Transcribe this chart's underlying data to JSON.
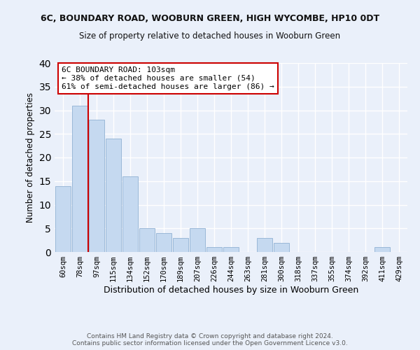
{
  "title": "6C, BOUNDARY ROAD, WOOBURN GREEN, HIGH WYCOMBE, HP10 0DT",
  "subtitle": "Size of property relative to detached houses in Wooburn Green",
  "xlabel": "Distribution of detached houses by size in Wooburn Green",
  "ylabel": "Number of detached properties",
  "categories": [
    "60sqm",
    "78sqm",
    "97sqm",
    "115sqm",
    "134sqm",
    "152sqm",
    "170sqm",
    "189sqm",
    "207sqm",
    "226sqm",
    "244sqm",
    "263sqm",
    "281sqm",
    "300sqm",
    "318sqm",
    "337sqm",
    "355sqm",
    "374sqm",
    "392sqm",
    "411sqm",
    "429sqm"
  ],
  "values": [
    14,
    31,
    28,
    24,
    16,
    5,
    4,
    3,
    5,
    1,
    1,
    0,
    3,
    2,
    0,
    0,
    0,
    0,
    0,
    1,
    0
  ],
  "bar_color": "#c5d9f0",
  "bar_edge_color": "#9ab8d8",
  "ylim": [
    0,
    40
  ],
  "yticks": [
    0,
    5,
    10,
    15,
    20,
    25,
    30,
    35,
    40
  ],
  "vline_color": "#cc0000",
  "annotation_text": "6C BOUNDARY ROAD: 103sqm\n← 38% of detached houses are smaller (54)\n61% of semi-detached houses are larger (86) →",
  "annotation_box_color": "#ffffff",
  "annotation_box_edge": "#cc0000",
  "footer": "Contains HM Land Registry data © Crown copyright and database right 2024.\nContains public sector information licensed under the Open Government Licence v3.0.",
  "background_color": "#eaf0fa",
  "grid_color": "#ffffff"
}
